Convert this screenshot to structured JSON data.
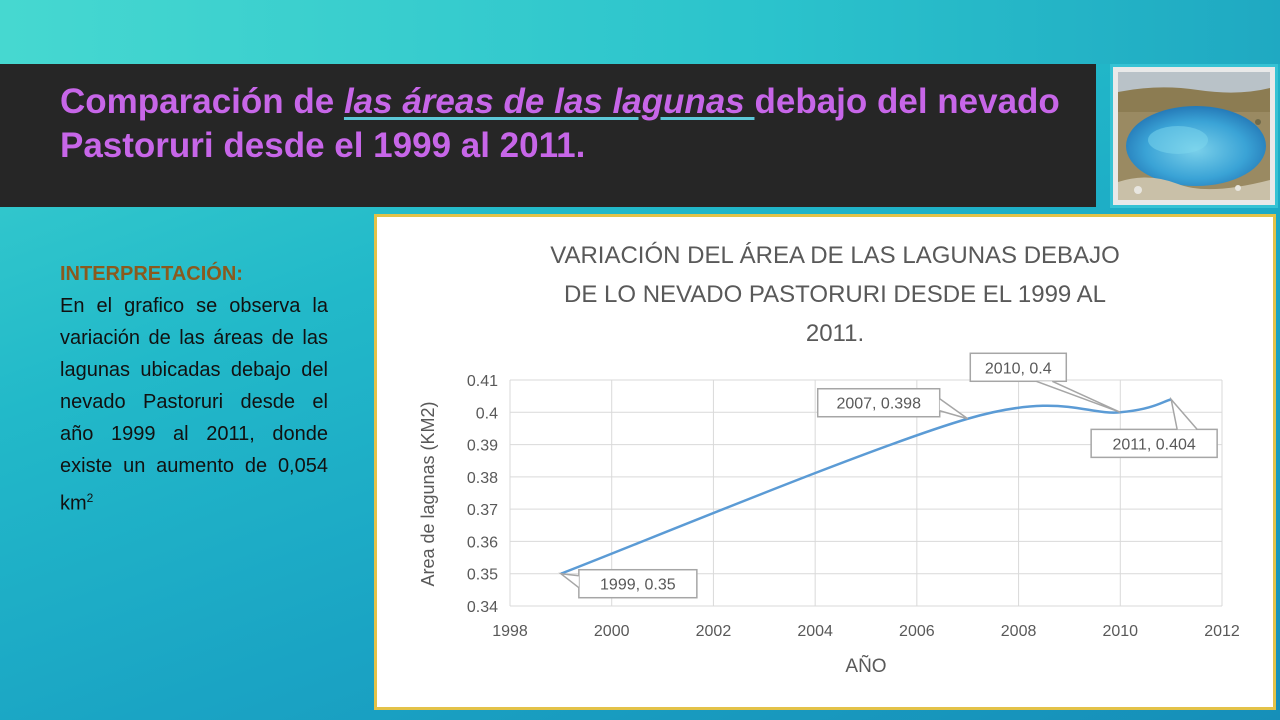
{
  "slide": {
    "title_part1": "Comparación de ",
    "title_link": "las áreas de las lagunas ",
    "title_part2": "debajo del nevado Pastoruri desde el 1999 al 2011.",
    "interpretation_heading": "INTERPRETACIÓN:",
    "interpretation_body": "En el grafico se observa la variación de las áreas de las lagunas ubicadas debajo del nevado Pastoruri desde el año 1999 al 2011, donde existe un aumento de 0,054 km",
    "interpretation_superscript": "2"
  },
  "colors": {
    "title": "#c766e8",
    "title_bar": "#262626",
    "heading": "#8a5a1e",
    "series_line": "#5b9bd5",
    "chart_border": "#e3c248"
  },
  "photo": {
    "icon": "lagoon-photo"
  },
  "chart_data": {
    "type": "line",
    "title_lines": [
      "VARIACIÓN DEL ÁREA DE LAS LAGUNAS DEBAJO",
      "DE LO NEVADO PASTORURI DESDE EL 1999 AL",
      "2011."
    ],
    "xlabel": "AÑO",
    "ylabel": "Area de lagunas (KM2)",
    "xlim": [
      1998,
      2012
    ],
    "ylim": [
      0.34,
      0.41
    ],
    "x_ticks": [
      "1998",
      "2000",
      "2002",
      "2004",
      "2006",
      "2008",
      "2010",
      "2012"
    ],
    "y_ticks": [
      "0.41",
      "0.4",
      "0.39",
      "0.38",
      "0.37",
      "0.36",
      "0.35",
      "0.34"
    ],
    "grid": true,
    "smooth": true,
    "series": [
      {
        "x": [
          1999,
          2007,
          2010,
          2011
        ],
        "y": [
          0.35,
          0.398,
          0.4,
          0.404
        ]
      }
    ],
    "data_labels": [
      "1999, 0.35",
      "2007, 0.398",
      "2010, 0.4",
      "2011, 0.404"
    ]
  }
}
